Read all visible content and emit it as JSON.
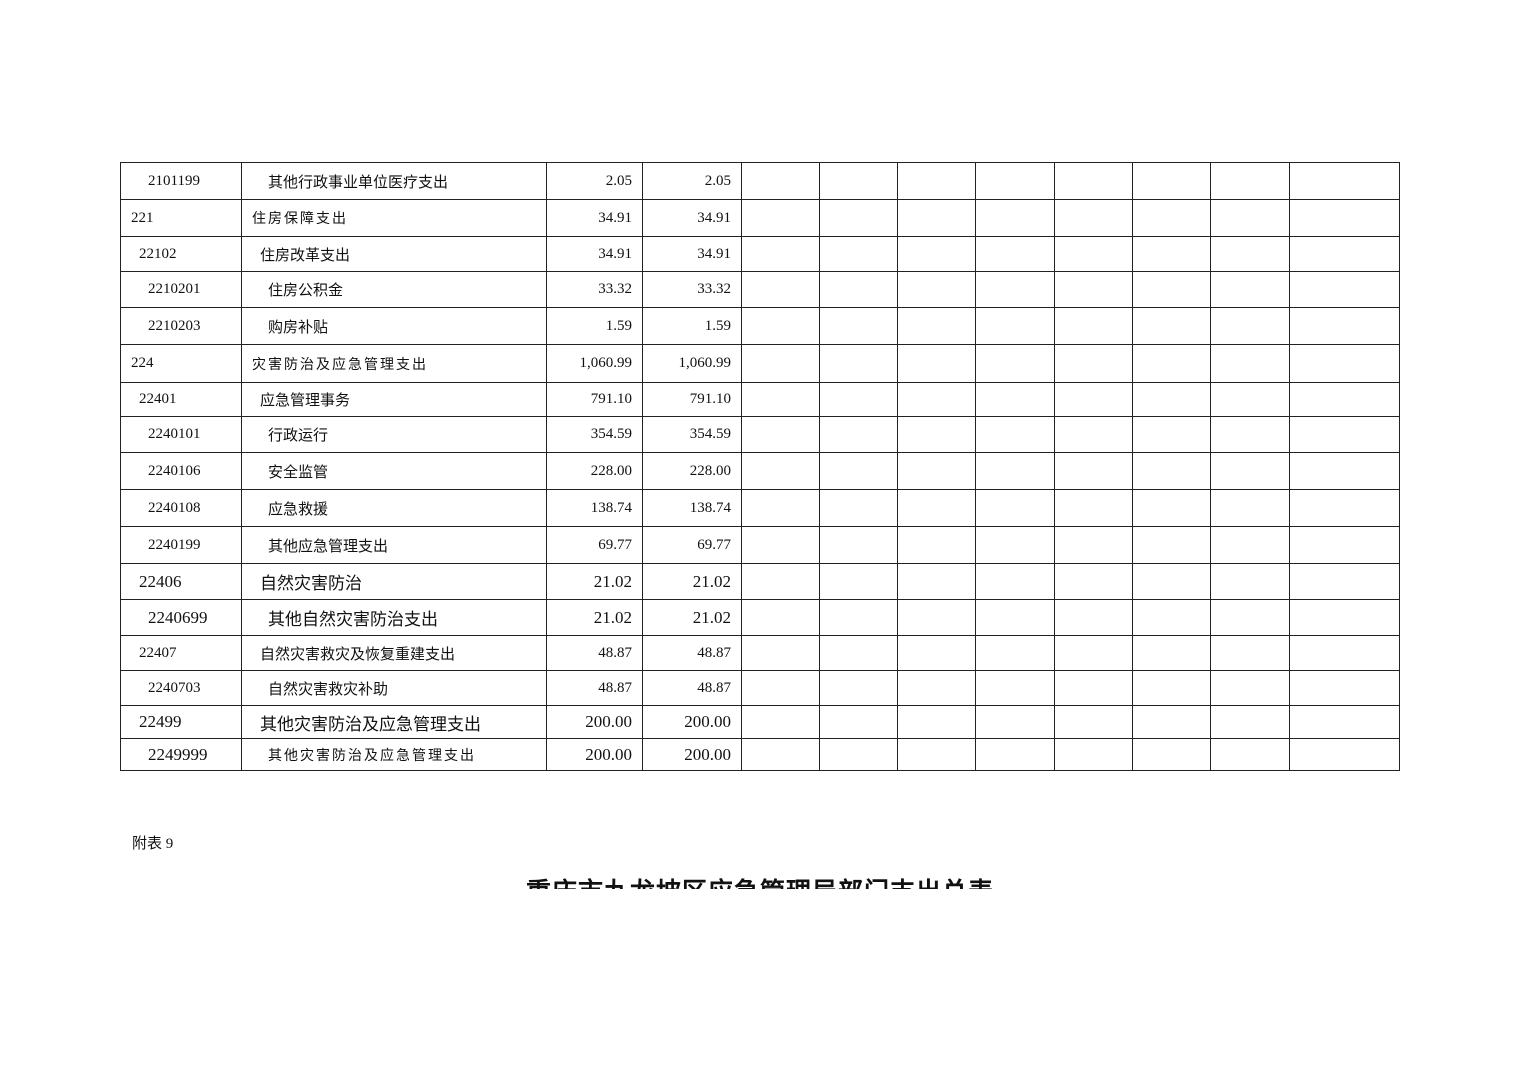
{
  "rows": [
    {
      "code": "2101199",
      "name": "其他行政事业单位医疗支出",
      "v1": "2.05",
      "v2": "2.05"
    },
    {
      "code": "221",
      "name": "住房保障支出",
      "v1": "34.91",
      "v2": "34.91"
    },
    {
      "code": "22102",
      "name": "住房改革支出",
      "v1": "34.91",
      "v2": "34.91"
    },
    {
      "code": "2210201",
      "name": "住房公积金",
      "v1": "33.32",
      "v2": "33.32"
    },
    {
      "code": "2210203",
      "name": "购房补贴",
      "v1": "1.59",
      "v2": "1.59"
    },
    {
      "code": "224",
      "name": "灾害防治及应急管理支出",
      "v1": "1,060.99",
      "v2": "1,060.99"
    },
    {
      "code": "22401",
      "name": "应急管理事务",
      "v1": "791.10",
      "v2": "791.10"
    },
    {
      "code": "2240101",
      "name": "行政运行",
      "v1": "354.59",
      "v2": "354.59"
    },
    {
      "code": "2240106",
      "name": "安全监管",
      "v1": "228.00",
      "v2": "228.00"
    },
    {
      "code": "2240108",
      "name": "应急救援",
      "v1": "138.74",
      "v2": "138.74"
    },
    {
      "code": "2240199",
      "name": "其他应急管理支出",
      "v1": "69.77",
      "v2": "69.77"
    },
    {
      "code": "22406",
      "name": "自然灾害防治",
      "v1": "21.02",
      "v2": "21.02"
    },
    {
      "code": "2240699",
      "name": "其他自然灾害防治支出",
      "v1": "21.02",
      "v2": "21.02"
    },
    {
      "code": "22407",
      "name": "自然灾害救灾及恢复重建支出",
      "v1": "48.87",
      "v2": "48.87"
    },
    {
      "code": "2240703",
      "name": "自然灾害救灾补助",
      "v1": "48.87",
      "v2": "48.87"
    },
    {
      "code": "22499",
      "name": "其他灾害防治及应急管理支出",
      "v1": "200.00",
      "v2": "200.00"
    },
    {
      "code": "2249999",
      "name": "其他灾害防治及应急管理支出",
      "v1": "200.00",
      "v2": "200.00"
    }
  ],
  "note": "附表 9",
  "title": "重庆市九龙坡区应急管理局部门支出总表"
}
